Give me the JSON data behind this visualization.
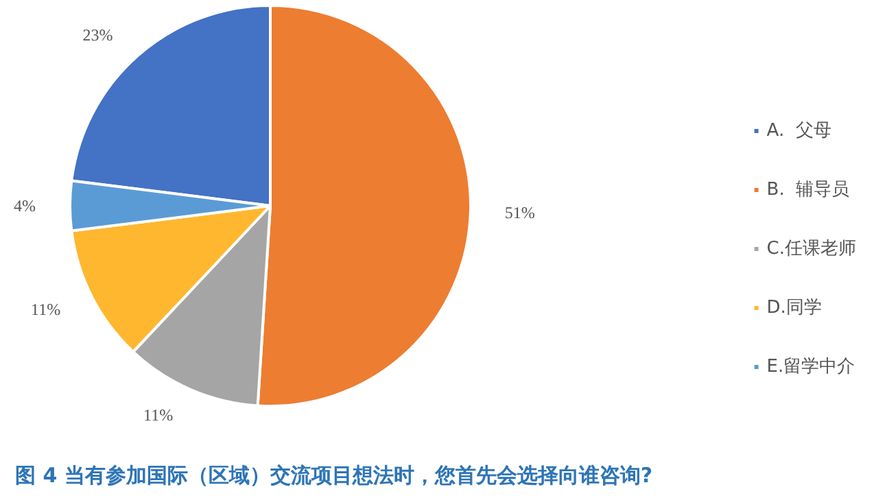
{
  "chart_data": {
    "type": "pie",
    "title": "图 4 当有参加国际（区域）交流项目想法时，您首先会选择向谁咨询?",
    "categories": [
      "A.  父母",
      "B.  辅导员",
      "C.任课老师",
      "D.同学",
      "E.留学中介"
    ],
    "values": [
      23,
      51,
      11,
      11,
      4
    ],
    "colors": [
      "#4472c4",
      "#ed7d31",
      "#a5a5a5",
      "#ffb72f",
      "#5b9bd5"
    ],
    "value_labels": [
      "23%",
      "51%",
      "11%",
      "11%",
      "4%"
    ],
    "legend": "right"
  }
}
